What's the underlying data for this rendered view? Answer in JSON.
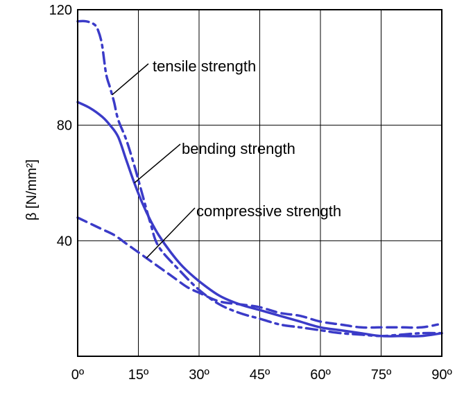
{
  "chart_data": {
    "type": "line",
    "title": "",
    "xlabel": "",
    "ylabel": "β [N/mm²]",
    "xlim": [
      0,
      90
    ],
    "ylim": [
      0,
      120
    ],
    "grid": true,
    "x_ticks": [
      0,
      15,
      30,
      45,
      60,
      75,
      90
    ],
    "x_tick_labels": [
      "0º",
      "15º",
      "30º",
      "45º",
      "60º",
      "75º",
      "90º"
    ],
    "y_ticks": [
      40,
      80,
      120
    ],
    "y_tick_labels": [
      "40",
      "80",
      "120"
    ],
    "series": [
      {
        "name": "tensile strength",
        "style": "dashdot",
        "color": "#3b3bc8",
        "x": [
          0,
          2,
          4,
          5,
          6,
          7,
          8,
          9,
          10,
          12,
          14,
          16,
          18,
          20,
          25,
          30,
          35,
          40,
          45,
          50,
          55,
          60,
          65,
          70,
          75,
          80,
          85,
          90
        ],
        "y": [
          116,
          116,
          115,
          113,
          108,
          98,
          93,
          88,
          82,
          75,
          66,
          56,
          46,
          38,
          30,
          23,
          18,
          15,
          13,
          11,
          10,
          9,
          8,
          7.5,
          7,
          7.5,
          8,
          8
        ]
      },
      {
        "name": "bending strength",
        "style": "solid",
        "color": "#3b3bc8",
        "x": [
          0,
          3,
          6,
          8,
          10,
          12,
          14,
          16,
          18,
          20,
          23,
          26,
          30,
          35,
          40,
          45,
          50,
          55,
          60,
          65,
          70,
          75,
          80,
          85,
          90
        ],
        "y": [
          88,
          86,
          83,
          80,
          76,
          68,
          60,
          53,
          47,
          42,
          36,
          31,
          26,
          21,
          18,
          16,
          14,
          12,
          10,
          9,
          8,
          7,
          7,
          7,
          8
        ]
      },
      {
        "name": "compressive strength",
        "style": "dashed",
        "color": "#3b3bc8",
        "x": [
          0,
          3,
          6,
          9,
          12,
          15,
          18,
          21,
          24,
          27,
          30,
          35,
          40,
          45,
          50,
          55,
          60,
          65,
          70,
          75,
          80,
          85,
          89
        ],
        "y": [
          48,
          46,
          44,
          42,
          39,
          36,
          33,
          30,
          27,
          24,
          22,
          19,
          18,
          17,
          15,
          14,
          12,
          11,
          10,
          10,
          10,
          10,
          11
        ]
      }
    ],
    "annotations": [
      {
        "text": "tensile strength",
        "target_series": "tensile strength"
      },
      {
        "text": "bending strength",
        "target_series": "bending strength"
      },
      {
        "text": "compressive strength",
        "target_series": "compressive strength"
      }
    ]
  }
}
